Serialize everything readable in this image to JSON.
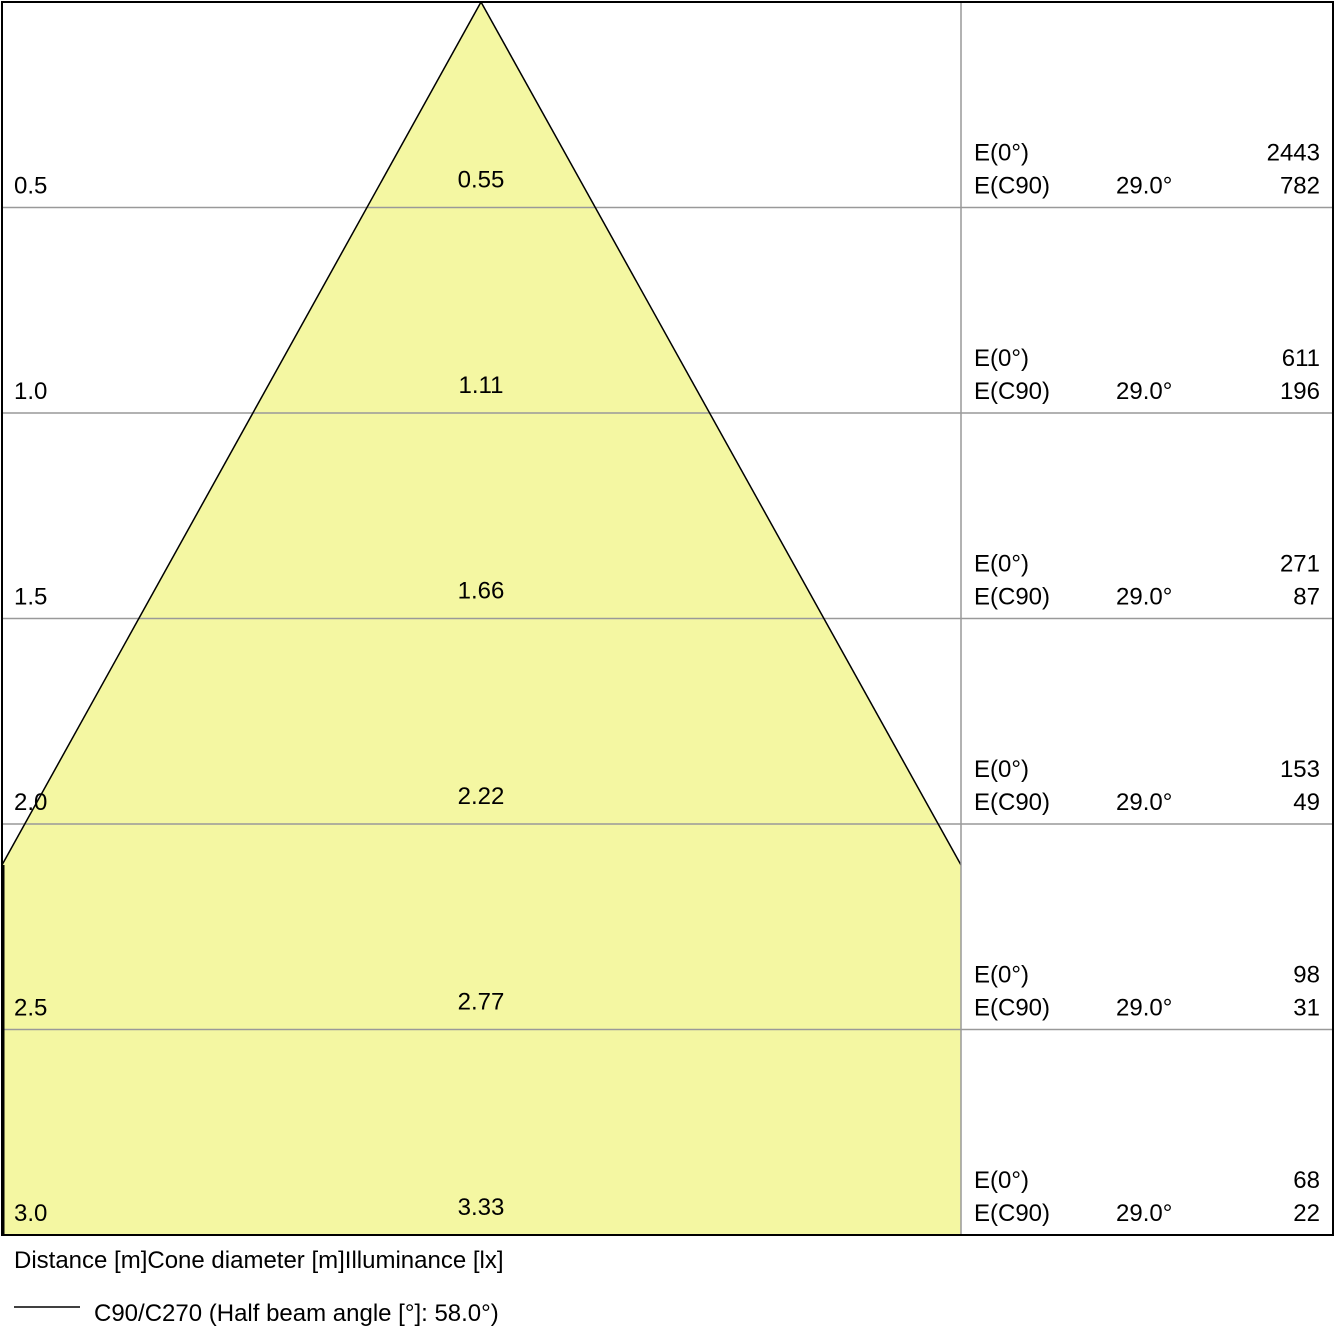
{
  "rows": [
    {
      "distance": "0.5",
      "diameter": "0.55",
      "e0_label": "E(0°)",
      "e0": "2443",
      "ec90_label": "E(C90)",
      "angle": "29.0°",
      "ec90": "782"
    },
    {
      "distance": "1.0",
      "diameter": "1.11",
      "e0_label": "E(0°)",
      "e0": "611",
      "ec90_label": "E(C90)",
      "angle": "29.0°",
      "ec90": "196"
    },
    {
      "distance": "1.5",
      "diameter": "1.66",
      "e0_label": "E(0°)",
      "e0": "271",
      "ec90_label": "E(C90)",
      "angle": "29.0°",
      "ec90": "87"
    },
    {
      "distance": "2.0",
      "diameter": "2.22",
      "e0_label": "E(0°)",
      "e0": "153",
      "ec90_label": "E(C90)",
      "angle": "29.0°",
      "ec90": "49"
    },
    {
      "distance": "2.5",
      "diameter": "2.77",
      "e0_label": "E(0°)",
      "e0": "98",
      "ec90_label": "E(C90)",
      "angle": "29.0°",
      "ec90": "31"
    },
    {
      "distance": "3.0",
      "diameter": "3.33",
      "e0_label": "E(0°)",
      "e0": "68",
      "ec90_label": "E(C90)",
      "angle": "29.0°",
      "ec90": "22"
    }
  ],
  "footer": {
    "col1": "Distance [m]",
    "col2": "Cone diameter [m]",
    "col3": "Illuminance [lx]"
  },
  "legend": "C90/C270 (Half beam angle [°]: 58.0°)"
}
